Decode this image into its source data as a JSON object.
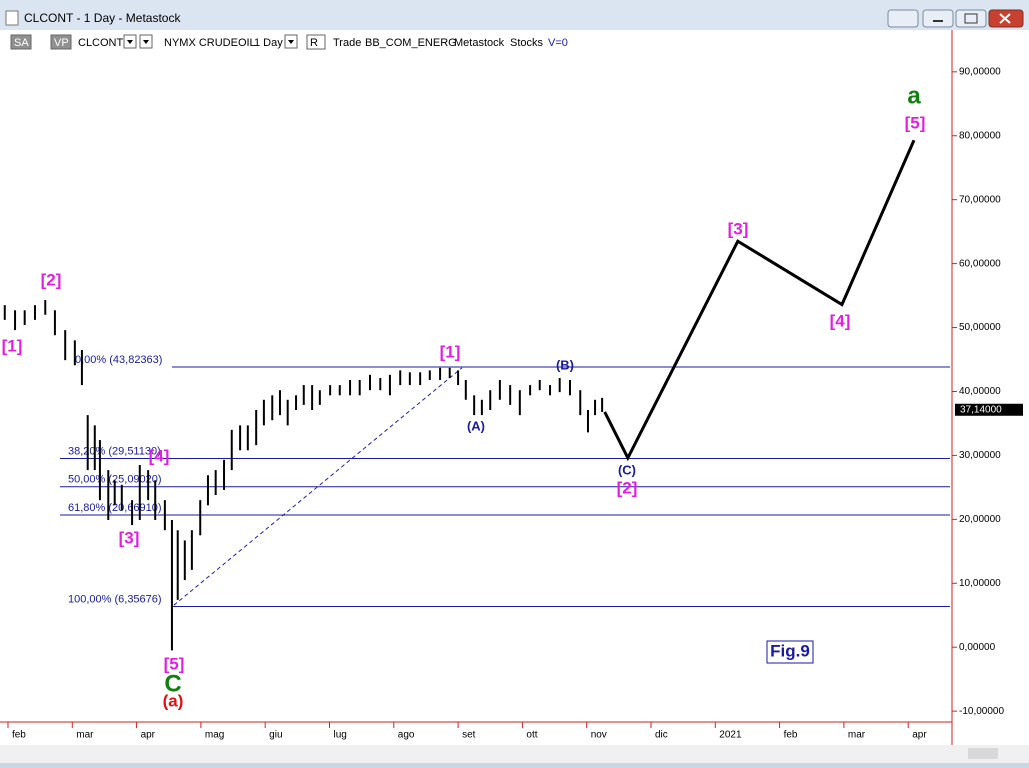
{
  "window": {
    "title": "CLCONT - 1 Day - Metastock"
  },
  "toolbar": {
    "items": [
      "SA",
      "VP",
      "CLCONT",
      "NYMX CRUDEOIL",
      "1 Day",
      "R",
      "Trade",
      "BB_COM_ENERG",
      "Metastock",
      "Stocks",
      "V=0"
    ]
  },
  "chart_data": {
    "type": "hilo",
    "color": "#000000",
    "x": [
      -0.05,
      0.11,
      0.26,
      0.42,
      0.58,
      0.73,
      0.89,
      1.04,
      1.15,
      1.24,
      1.35,
      1.43,
      1.56,
      1.66,
      1.77,
      1.93,
      2.05,
      2.18,
      2.29,
      2.44,
      2.55,
      2.64,
      2.75,
      2.86,
      2.99,
      3.11,
      3.23,
      3.36,
      3.48,
      3.61,
      3.73,
      3.86,
      3.98,
      4.11,
      4.23,
      4.35,
      4.48,
      4.6,
      4.73,
      4.85,
      5.01,
      5.16,
      5.32,
      5.47,
      5.63,
      5.79,
      5.94,
      6.1,
      6.25,
      6.41,
      6.56,
      6.72,
      6.87,
      7.0,
      7.12,
      7.25,
      7.37,
      7.5,
      7.65,
      7.81,
      7.96,
      8.12,
      8.27,
      8.43,
      8.58,
      8.74,
      8.9,
      9.02,
      9.13,
      9.24
    ],
    "high": [
      53.5,
      52.7,
      52.7,
      53.5,
      54.3,
      52.7,
      49.6,
      48.0,
      46.5,
      36.3,
      34.7,
      32.4,
      27.7,
      26.1,
      25.4,
      23.0,
      28.5,
      27.7,
      26.1,
      23.0,
      19.9,
      18.3,
      16.7,
      18.3,
      23.0,
      26.9,
      27.7,
      29.3,
      34.0,
      34.7,
      34.7,
      37.1,
      38.7,
      39.4,
      40.2,
      38.7,
      39.4,
      41.0,
      41.0,
      40.2,
      41.0,
      41.0,
      41.8,
      41.8,
      42.6,
      42.1,
      42.6,
      43.3,
      43.0,
      43.0,
      43.3,
      43.7,
      43.7,
      43.3,
      41.8,
      39.4,
      38.7,
      40.2,
      41.8,
      41.0,
      40.2,
      41.0,
      41.8,
      41.0,
      42.1,
      41.8,
      40.2,
      37.1,
      38.7,
      39.0
    ],
    "low": [
      51.2,
      49.6,
      50.4,
      51.2,
      52.0,
      48.8,
      44.9,
      44.1,
      41.0,
      27.7,
      27.7,
      23.0,
      19.9,
      22.2,
      21.4,
      19.1,
      19.9,
      23.0,
      19.9,
      18.3,
      -0.5,
      7.4,
      10.5,
      12.1,
      17.5,
      22.2,
      23.8,
      24.6,
      27.7,
      30.8,
      30.8,
      31.6,
      34.7,
      35.5,
      36.3,
      34.7,
      37.1,
      37.9,
      37.1,
      37.9,
      39.4,
      39.4,
      39.4,
      39.4,
      40.2,
      40.2,
      39.4,
      41.0,
      41.0,
      41.0,
      41.8,
      41.8,
      42.1,
      41.0,
      38.7,
      36.3,
      36.3,
      37.1,
      38.7,
      37.9,
      36.3,
      39.4,
      40.2,
      39.4,
      39.9,
      39.4,
      36.3,
      33.6,
      36.3,
      36.8
    ],
    "projection": {
      "color": "#000000",
      "x": [
        9.28,
        9.64,
        11.35,
        12.97,
        14.09
      ],
      "values": [
        36.8,
        29.6,
        63.5,
        53.6,
        79.3
      ]
    },
    "trendline": {
      "color": "#2020a0",
      "x": [
        2.58,
        7.06
      ],
      "values": [
        6.57,
        43.7
      ]
    },
    "fib_levels": [
      {
        "label": "0,00% (43,82363)",
        "value": 43.82363
      },
      {
        "label": "38,20% (29,51130)",
        "value": 29.5113
      },
      {
        "label": "50,00% (25,09020)",
        "value": 25.0902
      },
      {
        "label": "61,80% (20,66910)",
        "value": 20.6691
      },
      {
        "label": "100,00% (6,35676)",
        "value": 6.35676
      }
    ],
    "fib_color": "#1a1aa0",
    "last_price": {
      "value": 37.14,
      "label": "37,14000"
    },
    "annotations": [
      {
        "text": "[1]",
        "color": "#e020e0"
      },
      {
        "text": "[2]",
        "color": "#e020e0"
      },
      {
        "text": "[3]",
        "color": "#e020e0"
      },
      {
        "text": "[4]",
        "color": "#e020e0"
      },
      {
        "text": "[5]",
        "color": "#e020e0"
      },
      {
        "text": "C",
        "color": "#108010"
      },
      {
        "text": "(a)",
        "color": "#e01010"
      },
      {
        "text": "[1]",
        "color": "#e020e0"
      },
      {
        "text": "(A)",
        "color": "#1a1aa0"
      },
      {
        "text": "(B)",
        "color": "#1a1aa0"
      },
      {
        "text": "(C)",
        "color": "#1a1aa0"
      },
      {
        "text": "[2]",
        "color": "#e020e0"
      },
      {
        "text": "[3]",
        "color": "#e020e0"
      },
      {
        "text": "[4]",
        "color": "#e020e0"
      },
      {
        "text": "[5]",
        "color": "#e020e0"
      },
      {
        "text": "a",
        "color": "#108010"
      },
      {
        "text": "Fig.9",
        "color": "#1a1aa0"
      }
    ],
    "xlim": [
      -0.124,
      14.65
    ],
    "xticks": [
      {
        "value": 0,
        "label": "feb"
      },
      {
        "value": 1,
        "label": "mar"
      },
      {
        "value": 2,
        "label": "apr"
      },
      {
        "value": 3,
        "label": "mag"
      },
      {
        "value": 4,
        "label": "giu"
      },
      {
        "value": 5,
        "label": "lug"
      },
      {
        "value": 6,
        "label": "ago"
      },
      {
        "value": 7,
        "label": "set"
      },
      {
        "value": 8,
        "label": "ott"
      },
      {
        "value": 9,
        "label": "nov"
      },
      {
        "value": 10,
        "label": "dic"
      },
      {
        "value": 11,
        "label": "2021"
      },
      {
        "value": 12,
        "label": "feb"
      },
      {
        "value": 13,
        "label": "mar"
      },
      {
        "value": 14,
        "label": "apr"
      }
    ],
    "ylim": [
      -11.7,
      93.1
    ],
    "yticks": [
      {
        "value": 90,
        "label": "90,00000"
      },
      {
        "value": 80,
        "label": "80,00000"
      },
      {
        "value": 70,
        "label": "70,00000"
      },
      {
        "value": 60,
        "label": "60,00000"
      },
      {
        "value": 50,
        "label": "50,00000"
      },
      {
        "value": 40,
        "label": "40,00000"
      },
      {
        "value": 30,
        "label": "30,00000"
      },
      {
        "value": 20,
        "label": "20,00000"
      },
      {
        "value": 10,
        "label": "10,00000"
      },
      {
        "value": 0,
        "label": "0,00000"
      },
      {
        "value": -10,
        "label": "-10,00000"
      }
    ],
    "axis_color": "#d02020"
  }
}
